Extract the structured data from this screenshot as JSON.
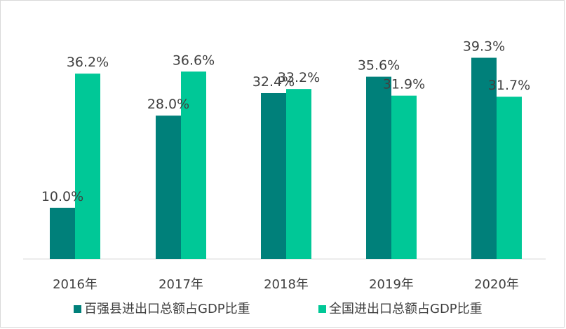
{
  "colors": {
    "series1": "#00807a",
    "series2": "#00c897",
    "axis": "#d9d9d9",
    "text": "#404040"
  },
  "chart_data": {
    "type": "bar",
    "title": "",
    "xlabel": "",
    "ylabel": "",
    "categories": [
      "2016年",
      "2017年",
      "2018年",
      "2019年",
      "2020年"
    ],
    "ylim": [
      0,
      42
    ],
    "grid": false,
    "legend_position": "bottom",
    "series": [
      {
        "name": "百强县进出口总额占GDP比重",
        "values": [
          10.0,
          28.0,
          32.4,
          35.6,
          39.3
        ],
        "labels": [
          "10.0%",
          "28.0%",
          "32.4%",
          "35.6%",
          "39.3%"
        ]
      },
      {
        "name": "全国进出口总额占GDP比重",
        "values": [
          36.2,
          36.6,
          33.2,
          31.9,
          31.7
        ],
        "labels": [
          "36.2%",
          "36.6%",
          "33.2%",
          "31.9%",
          "31.7%"
        ]
      }
    ]
  }
}
